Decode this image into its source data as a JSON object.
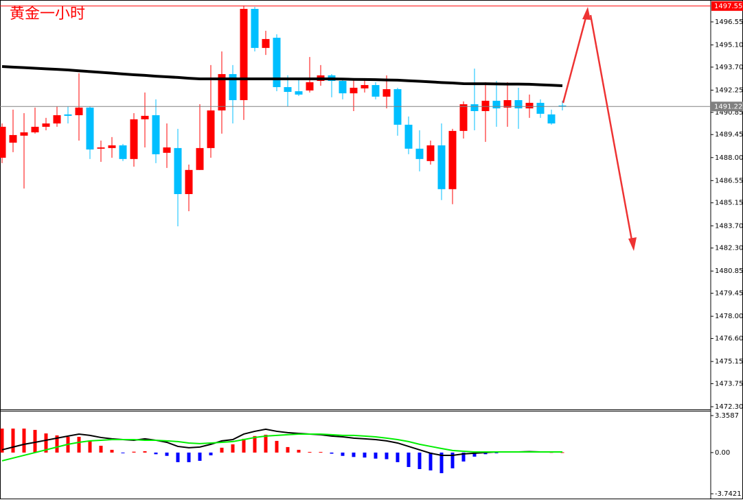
{
  "chart_data": [
    {
      "type": "candlestick",
      "title": "黄金一小时",
      "up_color": "#ff0000",
      "down_color": "#00bfff",
      "open": [
        1487.99,
        1488.94,
        1489.38,
        1489.59,
        1489.94,
        1490.15,
        1490.72,
        1490.67,
        1491.15,
        1488.56,
        1488.6,
        1488.77,
        1487.91,
        1490.41,
        1490.67,
        1488.3,
        1488.6,
        1485.7,
        1487.22,
        1488.6,
        1490.97,
        1493.26,
        1491.62,
        1497.37,
        1494.91,
        1495.55,
        1492.44,
        1492.18,
        1492.23,
        1492.83,
        1493.18,
        1492.83,
        1492.05,
        1492.36,
        1492.57,
        1491.84,
        1492.31,
        1490.07,
        1488.56,
        1487.78,
        1488.77,
        1486.01,
        1489.68,
        1491.36,
        1490.93,
        1491.58,
        1491.15,
        1491.62,
        1491.1,
        1491.45,
        1490.72,
        1491.28
      ],
      "high": [
        1490.15,
        1491.02,
        1490.8,
        1491.15,
        1490.5,
        1491.23,
        1491.23,
        1493.31,
        1491.23,
        1489.07,
        1489.29,
        1488.86,
        1490.8,
        1492.1,
        1491.67,
        1490.15,
        1489.81,
        1487.56,
        1491.36,
        1493.83,
        1494.69,
        1493.83,
        1497.58,
        1497.5,
        1495.99,
        1495.77,
        1493.18,
        1492.96,
        1494.34,
        1493.83,
        1493.26,
        1492.96,
        1492.96,
        1492.96,
        1492.75,
        1493.18,
        1492.4,
        1490.59,
        1489.72,
        1489.07,
        1490.15,
        1489.81,
        1491.54,
        1493.61,
        1492.75,
        1492.83,
        1492.75,
        1492.4,
        1491.97,
        1491.67,
        1491.02,
        1491.58
      ],
      "low": [
        1487.65,
        1488.34,
        1486.05,
        1489.51,
        1489.72,
        1489.94,
        1490.15,
        1489.07,
        1487.91,
        1487.73,
        1487.99,
        1487.78,
        1487.43,
        1488.64,
        1487.65,
        1487.35,
        1483.67,
        1484.62,
        1487.22,
        1487.99,
        1489.51,
        1490.15,
        1490.37,
        1494.69,
        1494.47,
        1492.18,
        1491.23,
        1491.88,
        1492.1,
        1492.53,
        1491.8,
        1491.67,
        1490.93,
        1492.1,
        1491.67,
        1491.1,
        1489.38,
        1488.21,
        1487.13,
        1487.56,
        1485.32,
        1485.06,
        1489.2,
        1489.72,
        1488.99,
        1489.94,
        1489.94,
        1489.81,
        1490.5,
        1490.5,
        1490.07,
        1490.97
      ],
      "close": [
        1489.94,
        1489.42,
        1489.59,
        1489.94,
        1490.15,
        1490.67,
        1490.63,
        1491.15,
        1488.51,
        1488.64,
        1488.77,
        1487.91,
        1490.41,
        1490.63,
        1488.21,
        1488.64,
        1485.7,
        1487.22,
        1488.6,
        1490.97,
        1493.26,
        1491.62,
        1497.37,
        1494.91,
        1495.47,
        1492.44,
        1492.14,
        1491.97,
        1492.75,
        1493.18,
        1492.83,
        1492.05,
        1492.4,
        1492.57,
        1491.84,
        1492.31,
        1490.07,
        1488.56,
        1487.91,
        1488.77,
        1486.01,
        1489.68,
        1491.36,
        1490.93,
        1491.58,
        1491.1,
        1491.62,
        1491.1,
        1491.45,
        1490.76,
        1490.15,
        1491.23
      ],
      "ma_color": "#000000",
      "ma_values": [
        1493.74,
        1493.7,
        1493.67,
        1493.63,
        1493.59,
        1493.56,
        1493.52,
        1493.47,
        1493.42,
        1493.37,
        1493.32,
        1493.27,
        1493.22,
        1493.18,
        1493.13,
        1493.09,
        1493.05,
        1493.0,
        1492.96,
        1492.96,
        1492.96,
        1492.96,
        1492.96,
        1492.96,
        1492.96,
        1492.96,
        1492.96,
        1492.96,
        1492.96,
        1492.96,
        1492.96,
        1492.95,
        1492.93,
        1492.92,
        1492.91,
        1492.89,
        1492.88,
        1492.84,
        1492.81,
        1492.77,
        1492.73,
        1492.7,
        1492.66,
        1492.65,
        1492.65,
        1492.64,
        1492.63,
        1492.63,
        1492.62,
        1492.59,
        1492.56,
        1492.53
      ],
      "price_lines": [
        {
          "value": 1497.55,
          "color": "#ff0000"
        },
        {
          "value": 1491.22,
          "color": "#808080"
        }
      ],
      "ylim": [
        1472.13,
        1497.93
      ],
      "yticks": [
        1496.55,
        {
          "value": 1495.1,
          "label": "1495.10"
        },
        {
          "value": 1493.7,
          "label": "1493.70"
        },
        1492.25,
        1490.85,
        1489.45,
        {
          "value": 1488,
          "label": "1488.00"
        },
        1486.55,
        1485.15,
        {
          "value": 1483.7,
          "label": "1483.70"
        },
        {
          "value": 1482.3,
          "label": "1482.30"
        },
        1480.85,
        1479.45,
        {
          "value": 1478,
          "label": "1478.00"
        },
        {
          "value": 1476.6,
          "label": "1476.60"
        },
        1475.15,
        1473.75,
        {
          "value": 1472.3,
          "label": "1472.30"
        }
      ]
    },
    {
      "type": "macd",
      "pos_color": "#ff0000",
      "neg_color": "#0000ff",
      "histogram": [
        2.18,
        2.18,
        2.18,
        2.06,
        1.74,
        1.56,
        1.43,
        1.43,
        1.06,
        0.62,
        0.25,
        -0.05,
        0.08,
        0.12,
        -0.15,
        -0.3,
        -0.87,
        -0.87,
        -0.75,
        -0.25,
        0.44,
        0.75,
        1.25,
        1.5,
        1.62,
        1.06,
        0.5,
        0.25,
        0.06,
        0.06,
        -0.1,
        -0.3,
        -0.4,
        -0.45,
        -0.55,
        -0.6,
        -0.87,
        -1.31,
        -1.5,
        -1.62,
        -1.87,
        -1.43,
        -0.81,
        -0.37,
        -0.15,
        -0.05,
        0.06,
        0.08,
        0.12,
        0.06,
        0.04,
        0.03
      ],
      "lines": [
        {
          "color": "#000000",
          "values": [
            0.25,
            0.5,
            0.75,
            0.93,
            1.12,
            1.31,
            1.5,
            1.68,
            1.56,
            1.37,
            1.25,
            1.18,
            1.12,
            1.25,
            1.12,
            0.93,
            0.56,
            0.44,
            0.5,
            0.75,
            1.06,
            1.18,
            1.68,
            1.93,
            2.12,
            1.93,
            1.81,
            1.74,
            1.68,
            1.62,
            1.5,
            1.43,
            1.31,
            1.25,
            1.18,
            1.06,
            0.87,
            0.56,
            0.25,
            -0.06,
            -0.25,
            -0.25,
            -0.12,
            -0.06,
            0,
            0.06,
            0.06,
            0.06,
            0.09,
            0.06,
            0.06,
            0.06
          ]
        },
        {
          "color": "#00ee00",
          "values": [
            -0.75,
            -0.5,
            -0.25,
            0,
            0.25,
            0.5,
            0.75,
            0.93,
            1.06,
            1.12,
            1.18,
            1.18,
            1.18,
            1.12,
            1.12,
            1.06,
            1,
            0.87,
            0.81,
            0.87,
            0.93,
            1,
            1.18,
            1.37,
            1.5,
            1.56,
            1.62,
            1.68,
            1.68,
            1.68,
            1.62,
            1.56,
            1.56,
            1.5,
            1.43,
            1.31,
            1.18,
            1,
            0.75,
            0.56,
            0.37,
            0.19,
            0.12,
            0.06,
            0.06,
            0.06,
            0.06,
            0.06,
            0.06,
            0.06,
            0.06,
            0.06
          ]
        }
      ],
      "ylim": [
        -4.178,
        3.795
      ],
      "yticks": [
        3.3587,
        {
          "value": 0,
          "label": "0.00"
        },
        -3.7421
      ]
    }
  ]
}
